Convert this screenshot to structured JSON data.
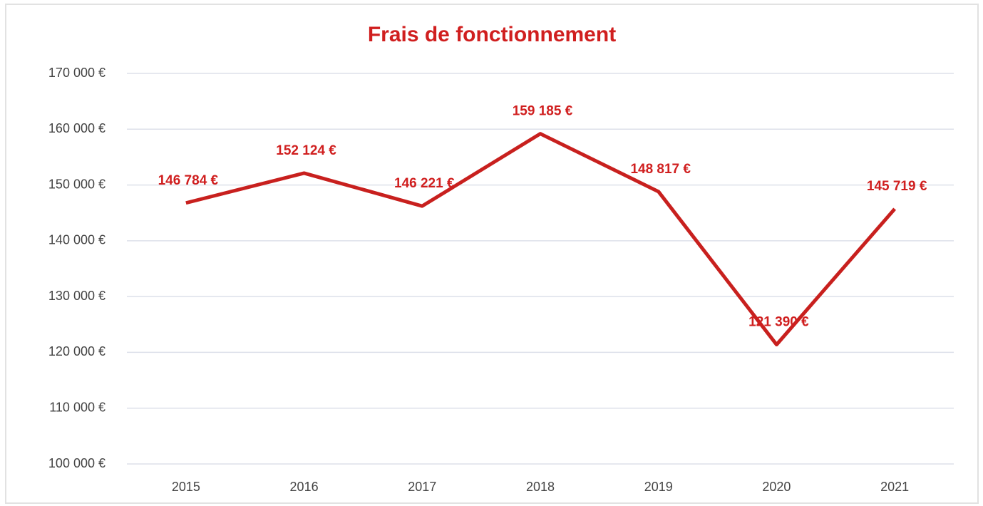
{
  "chart_data": {
    "type": "line",
    "title": "Frais de fonctionnement",
    "categories": [
      "2015",
      "2016",
      "2017",
      "2018",
      "2019",
      "2020",
      "2021"
    ],
    "series": [
      {
        "name": "Frais de fonctionnement",
        "color": "#c8201e",
        "values": [
          146784,
          152124,
          146221,
          159185,
          148817,
          121390,
          145719
        ],
        "value_labels": [
          "146 784 €",
          "152 124 €",
          "146 221 €",
          "159 185 €",
          "148 817 €",
          "121 390 €",
          "145 719 €"
        ]
      }
    ],
    "ylim": [
      100000,
      170000
    ],
    "yticks": [
      {
        "value": 100000,
        "label": "100 000 €"
      },
      {
        "value": 110000,
        "label": "110 000 €"
      },
      {
        "value": 120000,
        "label": "120 000 €"
      },
      {
        "value": 130000,
        "label": "130 000 €"
      },
      {
        "value": 140000,
        "label": "140 000 €"
      },
      {
        "value": 150000,
        "label": "150 000 €"
      },
      {
        "value": 160000,
        "label": "160 000 €"
      },
      {
        "value": 170000,
        "label": "170 000 €"
      }
    ],
    "grid": true
  }
}
